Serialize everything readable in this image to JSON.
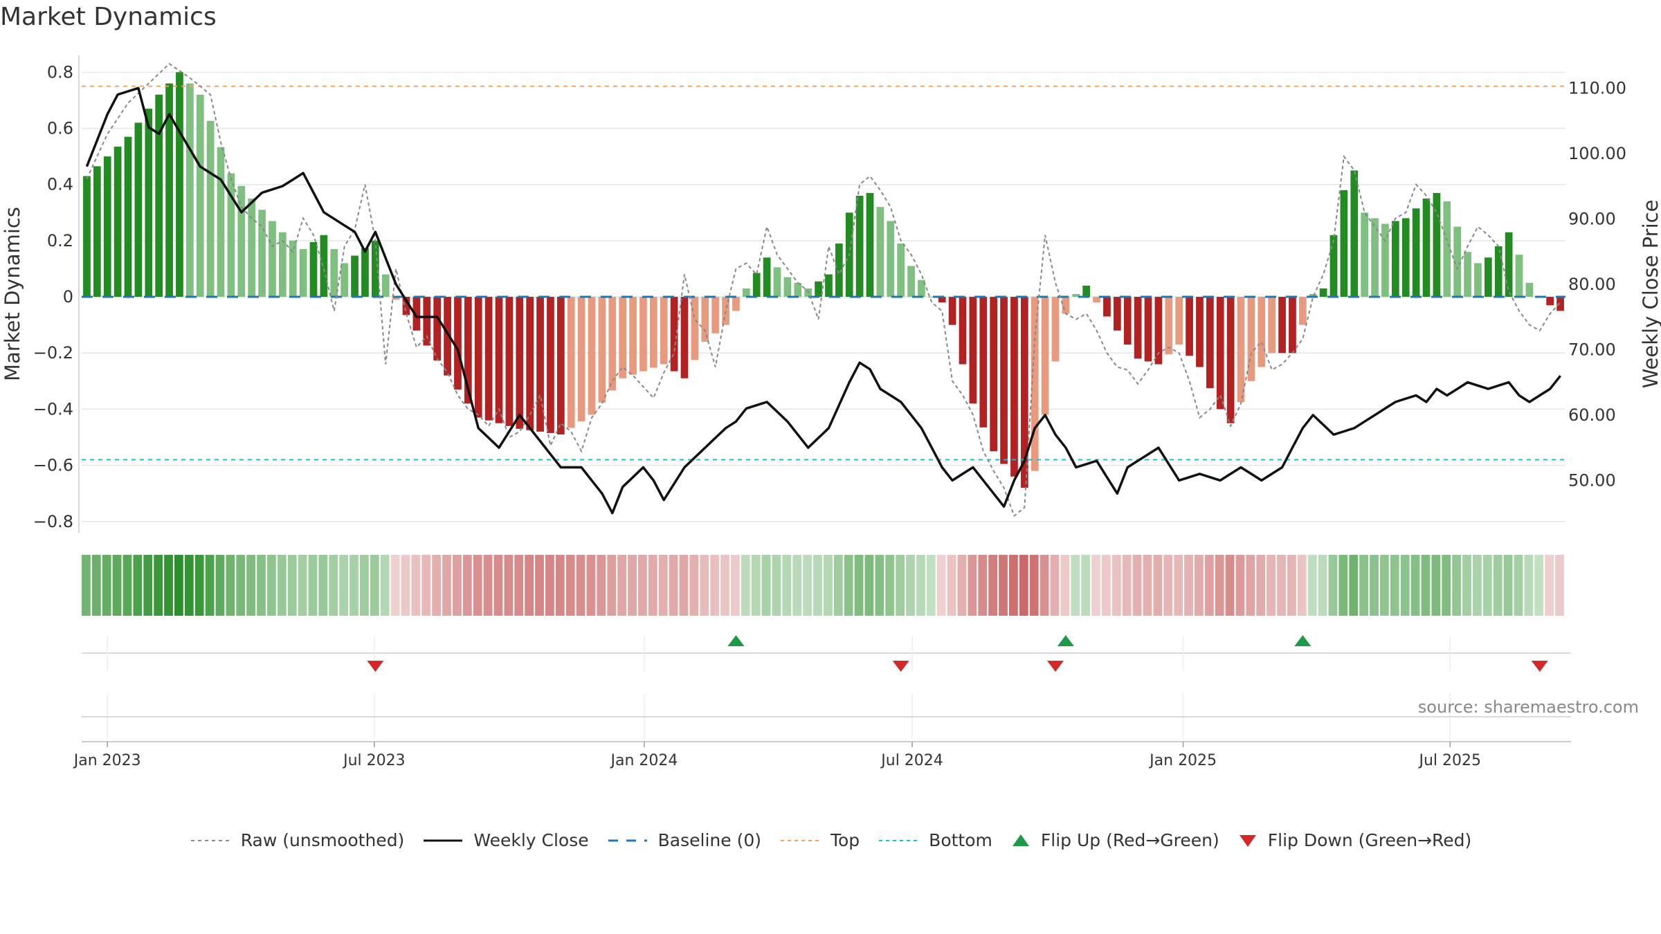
{
  "title": "Market Dynamics",
  "source": "source: sharemaestro.com",
  "legend": [
    {
      "key": "raw",
      "label": "Raw (unsmoothed)"
    },
    {
      "key": "close",
      "label": "Weekly Close"
    },
    {
      "key": "baseline",
      "label": "Baseline (0)"
    },
    {
      "key": "top",
      "label": "Top"
    },
    {
      "key": "bottom",
      "label": "Bottom"
    },
    {
      "key": "flip_up",
      "label": "Flip Up (Red→Green)"
    },
    {
      "key": "flip_down",
      "label": "Flip Down (Green→Red)"
    }
  ],
  "colors": {
    "strong_green": "#228b22",
    "light_green": "#7fbf7f",
    "strong_red": "#b22222",
    "light_red": "#e89a7e",
    "close": "#111111",
    "raw": "#888888",
    "baseline": "#1f77b4",
    "top": "#f4a460",
    "bottom": "#17becf",
    "flip_up": "#1e9a46",
    "flip_down": "#d62728"
  },
  "chart_data": {
    "type": "bar",
    "title": "Market Dynamics",
    "xlabel": "",
    "ylabel": "Market Dynamics",
    "ylabel_right": "Weekly Close Price",
    "ylim": [
      -0.84,
      0.86
    ],
    "ylim_right": [
      42.0,
      115.0
    ],
    "yticks": [
      -0.8,
      -0.6,
      -0.4,
      -0.2,
      0,
      0.2,
      0.4,
      0.6,
      0.8
    ],
    "ytick_labels": [
      "−0.8",
      "−0.6",
      "−0.4",
      "−0.2",
      "0",
      "0.2",
      "0.4",
      "0.6",
      "0.8"
    ],
    "yticks_right": [
      50,
      60,
      70,
      80,
      90,
      100,
      110
    ],
    "ytick_right_labels": [
      "50.00",
      "60.00",
      "70.00",
      "80.00",
      "90.00",
      "100.00",
      "110.00"
    ],
    "x_start": "2022-12-19",
    "week_count": 144,
    "xticks": [
      {
        "label": "Jan 2023",
        "week": 2.0
      },
      {
        "label": "Jul 2023",
        "week": 27.9
      },
      {
        "label": "Jan 2024",
        "week": 54.1
      },
      {
        "label": "Jul 2024",
        "week": 80.1
      },
      {
        "label": "Jan 2025",
        "week": 106.4
      },
      {
        "label": "Jul 2025",
        "week": 132.3
      }
    ],
    "top_level": 0.75,
    "bottom_level": -0.58,
    "baseline": 0,
    "momentum_anchors": [
      [
        0,
        0.43
      ],
      [
        4,
        0.57
      ],
      [
        7,
        0.72
      ],
      [
        9,
        0.8
      ],
      [
        11,
        0.72
      ],
      [
        14,
        0.44
      ],
      [
        16,
        0.35
      ],
      [
        19,
        0.23
      ],
      [
        21,
        0.17
      ],
      [
        23,
        0.22
      ],
      [
        25,
        0.12
      ],
      [
        28,
        0.2
      ],
      [
        29,
        0.08
      ],
      [
        30,
        -0.01
      ],
      [
        32,
        -0.12
      ],
      [
        35,
        -0.28
      ],
      [
        38,
        -0.43
      ],
      [
        42,
        -0.47
      ],
      [
        46,
        -0.49
      ],
      [
        49,
        -0.42
      ],
      [
        52,
        -0.29
      ],
      [
        56,
        -0.24
      ],
      [
        58,
        -0.29
      ],
      [
        60,
        -0.16
      ],
      [
        62,
        -0.1
      ],
      [
        63,
        -0.05
      ],
      [
        64,
        0.03
      ],
      [
        66,
        0.14
      ],
      [
        68,
        0.07
      ],
      [
        70,
        0.03
      ],
      [
        72,
        0.08
      ],
      [
        74,
        0.3
      ],
      [
        75,
        0.36
      ],
      [
        76,
        0.37
      ],
      [
        78,
        0.27
      ],
      [
        80,
        0.11
      ],
      [
        81,
        0.06
      ],
      [
        82,
        0.0
      ],
      [
        83,
        -0.02
      ],
      [
        84,
        -0.1
      ],
      [
        86,
        -0.38
      ],
      [
        88,
        -0.55
      ],
      [
        90,
        -0.64
      ],
      [
        91,
        -0.68
      ],
      [
        92,
        -0.62
      ],
      [
        93,
        -0.42
      ],
      [
        94,
        -0.23
      ],
      [
        95,
        -0.06
      ],
      [
        96,
        0.01
      ],
      [
        97,
        0.04
      ],
      [
        98,
        -0.02
      ],
      [
        100,
        -0.12
      ],
      [
        102,
        -0.22
      ],
      [
        104,
        -0.24
      ],
      [
        106,
        -0.17
      ],
      [
        108,
        -0.25
      ],
      [
        110,
        -0.4
      ],
      [
        111,
        -0.45
      ],
      [
        113,
        -0.3
      ],
      [
        115,
        -0.2
      ],
      [
        117,
        -0.2
      ],
      [
        118,
        -0.1
      ],
      [
        119,
        0.01
      ],
      [
        120,
        0.03
      ],
      [
        121,
        0.22
      ],
      [
        122,
        0.38
      ],
      [
        123,
        0.45
      ],
      [
        124,
        0.3
      ],
      [
        126,
        0.26
      ],
      [
        128,
        0.28
      ],
      [
        130,
        0.35
      ],
      [
        131,
        0.37
      ],
      [
        132,
        0.34
      ],
      [
        134,
        0.16
      ],
      [
        135,
        0.12
      ],
      [
        136,
        0.14
      ],
      [
        137,
        0.18
      ],
      [
        138,
        0.23
      ],
      [
        139,
        0.15
      ],
      [
        140,
        0.05
      ],
      [
        141,
        0.0
      ],
      [
        142,
        -0.03
      ],
      [
        143,
        -0.05
      ]
    ],
    "close_anchors": [
      [
        0,
        98
      ],
      [
        2,
        106
      ],
      [
        3,
        109
      ],
      [
        5,
        110
      ],
      [
        6,
        104
      ],
      [
        7,
        103
      ],
      [
        8,
        106
      ],
      [
        11,
        98
      ],
      [
        13,
        96
      ],
      [
        15,
        91
      ],
      [
        17,
        94
      ],
      [
        19,
        95
      ],
      [
        20,
        96
      ],
      [
        21,
        97
      ],
      [
        22,
        94
      ],
      [
        23,
        91
      ],
      [
        25,
        89
      ],
      [
        26,
        88
      ],
      [
        27,
        85
      ],
      [
        28,
        88
      ],
      [
        30,
        80
      ],
      [
        32,
        75
      ],
      [
        34,
        75
      ],
      [
        36,
        70
      ],
      [
        38,
        58
      ],
      [
        40,
        55
      ],
      [
        42,
        60
      ],
      [
        44,
        56
      ],
      [
        46,
        52
      ],
      [
        48,
        52
      ],
      [
        50,
        48
      ],
      [
        51,
        45
      ],
      [
        52,
        49
      ],
      [
        54,
        52
      ],
      [
        55,
        50
      ],
      [
        56,
        47
      ],
      [
        58,
        52
      ],
      [
        60,
        55
      ],
      [
        62,
        58
      ],
      [
        63,
        59
      ],
      [
        64,
        61
      ],
      [
        66,
        62
      ],
      [
        68,
        59
      ],
      [
        70,
        55
      ],
      [
        72,
        58
      ],
      [
        74,
        65
      ],
      [
        75,
        68
      ],
      [
        76,
        67
      ],
      [
        77,
        64
      ],
      [
        79,
        62
      ],
      [
        81,
        58
      ],
      [
        83,
        52
      ],
      [
        84,
        50
      ],
      [
        86,
        52
      ],
      [
        88,
        48
      ],
      [
        89,
        46
      ],
      [
        90,
        50
      ],
      [
        91,
        53
      ],
      [
        92,
        58
      ],
      [
        93,
        60
      ],
      [
        94,
        57
      ],
      [
        95,
        55
      ],
      [
        96,
        52
      ],
      [
        98,
        53
      ],
      [
        100,
        48
      ],
      [
        101,
        52
      ],
      [
        102,
        53
      ],
      [
        104,
        55
      ],
      [
        106,
        50
      ],
      [
        108,
        51
      ],
      [
        110,
        50
      ],
      [
        112,
        52
      ],
      [
        114,
        50
      ],
      [
        116,
        52
      ],
      [
        118,
        58
      ],
      [
        119,
        60
      ],
      [
        121,
        57
      ],
      [
        123,
        58
      ],
      [
        125,
        60
      ],
      [
        127,
        62
      ],
      [
        129,
        63
      ],
      [
        130,
        62
      ],
      [
        131,
        64
      ],
      [
        132,
        63
      ],
      [
        134,
        65
      ],
      [
        136,
        64
      ],
      [
        138,
        65
      ],
      [
        139,
        63
      ],
      [
        140,
        62
      ],
      [
        142,
        64
      ],
      [
        143,
        66
      ]
    ],
    "raw_anchors": [
      [
        0,
        0.42
      ],
      [
        2,
        0.58
      ],
      [
        4,
        0.69
      ],
      [
        6,
        0.76
      ],
      [
        8,
        0.83
      ],
      [
        10,
        0.78
      ],
      [
        12,
        0.72
      ],
      [
        13,
        0.55
      ],
      [
        14,
        0.42
      ],
      [
        15,
        0.32
      ],
      [
        16,
        0.28
      ],
      [
        17,
        0.25
      ],
      [
        18,
        0.18
      ],
      [
        19,
        0.2
      ],
      [
        20,
        0.16
      ],
      [
        21,
        0.28
      ],
      [
        22,
        0.22
      ],
      [
        23,
        0.1
      ],
      [
        24,
        -0.05
      ],
      [
        25,
        0.18
      ],
      [
        26,
        0.24
      ],
      [
        27,
        0.4
      ],
      [
        28,
        0.2
      ],
      [
        29,
        -0.24
      ],
      [
        30,
        0.1
      ],
      [
        31,
        -0.06
      ],
      [
        32,
        -0.18
      ],
      [
        33,
        -0.14
      ],
      [
        34,
        -0.22
      ],
      [
        35,
        -0.27
      ],
      [
        36,
        -0.35
      ],
      [
        37,
        -0.4
      ],
      [
        38,
        -0.42
      ],
      [
        39,
        -0.46
      ],
      [
        40,
        -0.4
      ],
      [
        41,
        -0.5
      ],
      [
        42,
        -0.48
      ],
      [
        43,
        -0.42
      ],
      [
        44,
        -0.35
      ],
      [
        45,
        -0.53
      ],
      [
        46,
        -0.45
      ],
      [
        47,
        -0.48
      ],
      [
        48,
        -0.55
      ],
      [
        49,
        -0.43
      ],
      [
        50,
        -0.38
      ],
      [
        51,
        -0.3
      ],
      [
        52,
        -0.25
      ],
      [
        53,
        -0.28
      ],
      [
        54,
        -0.32
      ],
      [
        55,
        -0.36
      ],
      [
        56,
        -0.27
      ],
      [
        57,
        -0.2
      ],
      [
        58,
        0.08
      ],
      [
        59,
        -0.08
      ],
      [
        60,
        -0.12
      ],
      [
        61,
        -0.25
      ],
      [
        62,
        -0.05
      ],
      [
        63,
        0.1
      ],
      [
        64,
        0.12
      ],
      [
        65,
        0.08
      ],
      [
        66,
        0.25
      ],
      [
        67,
        0.15
      ],
      [
        68,
        0.1
      ],
      [
        69,
        0.05
      ],
      [
        70,
        0.02
      ],
      [
        71,
        -0.08
      ],
      [
        72,
        0.18
      ],
      [
        73,
        0.08
      ],
      [
        74,
        0.15
      ],
      [
        75,
        0.4
      ],
      [
        76,
        0.43
      ],
      [
        77,
        0.38
      ],
      [
        78,
        0.32
      ],
      [
        79,
        0.2
      ],
      [
        80,
        0.15
      ],
      [
        81,
        0.08
      ],
      [
        82,
        -0.02
      ],
      [
        83,
        -0.05
      ],
      [
        84,
        -0.3
      ],
      [
        85,
        -0.35
      ],
      [
        86,
        -0.42
      ],
      [
        87,
        -0.55
      ],
      [
        88,
        -0.62
      ],
      [
        89,
        -0.68
      ],
      [
        90,
        -0.78
      ],
      [
        91,
        -0.75
      ],
      [
        92,
        -0.15
      ],
      [
        93,
        0.22
      ],
      [
        94,
        0.05
      ],
      [
        95,
        -0.06
      ],
      [
        96,
        -0.08
      ],
      [
        97,
        -0.06
      ],
      [
        98,
        -0.12
      ],
      [
        99,
        -0.2
      ],
      [
        100,
        -0.25
      ],
      [
        101,
        -0.26
      ],
      [
        102,
        -0.31
      ],
      [
        103,
        -0.26
      ],
      [
        104,
        -0.2
      ],
      [
        105,
        -0.18
      ],
      [
        106,
        -0.2
      ],
      [
        107,
        -0.3
      ],
      [
        108,
        -0.43
      ],
      [
        109,
        -0.4
      ],
      [
        110,
        -0.35
      ],
      [
        111,
        -0.46
      ],
      [
        112,
        -0.38
      ],
      [
        113,
        -0.2
      ],
      [
        114,
        -0.16
      ],
      [
        115,
        -0.26
      ],
      [
        116,
        -0.24
      ],
      [
        117,
        -0.2
      ],
      [
        118,
        -0.15
      ],
      [
        119,
        0.0
      ],
      [
        120,
        0.08
      ],
      [
        121,
        0.2
      ],
      [
        122,
        0.5
      ],
      [
        123,
        0.45
      ],
      [
        124,
        0.3
      ],
      [
        125,
        0.25
      ],
      [
        126,
        0.2
      ],
      [
        127,
        0.28
      ],
      [
        128,
        0.3
      ],
      [
        129,
        0.4
      ],
      [
        130,
        0.36
      ],
      [
        131,
        0.3
      ],
      [
        132,
        0.2
      ],
      [
        133,
        0.1
      ],
      [
        134,
        0.18
      ],
      [
        135,
        0.25
      ],
      [
        136,
        0.22
      ],
      [
        137,
        0.18
      ],
      [
        138,
        0.02
      ],
      [
        139,
        -0.05
      ],
      [
        140,
        -0.1
      ],
      [
        141,
        -0.12
      ],
      [
        142,
        -0.06
      ],
      [
        143,
        -0.02
      ]
    ],
    "flip_up": [
      {
        "week": 63
      },
      {
        "week": 95
      },
      {
        "week": 118
      }
    ],
    "flip_down": [
      {
        "week": 28
      },
      {
        "week": 79
      },
      {
        "week": 94
      },
      {
        "week": 141
      }
    ],
    "regime_note": "bar shade: strong color when momentum is rising in magnitude, light color when fading"
  }
}
